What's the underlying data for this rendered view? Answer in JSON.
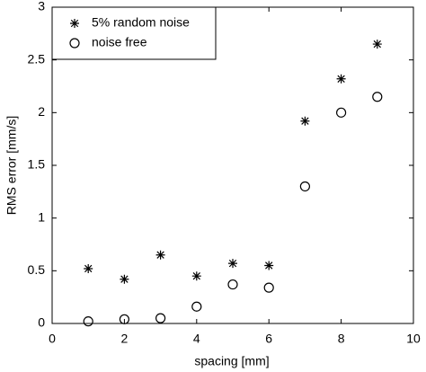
{
  "chart_data": {
    "type": "scatter",
    "xlabel": "spacing [mm]",
    "ylabel": "RMS error [mm/s]",
    "x": [
      1,
      2,
      3,
      4,
      5,
      6,
      7,
      8,
      9
    ],
    "series": [
      {
        "name": "5% random noise",
        "color": "#000000",
        "marker": "star",
        "values": [
          0.52,
          0.42,
          0.65,
          0.45,
          0.57,
          0.55,
          1.92,
          2.32,
          2.65
        ]
      },
      {
        "name": "noise free",
        "color": "#000000",
        "marker": "circle",
        "values": [
          0.02,
          0.04,
          0.05,
          0.16,
          0.37,
          0.34,
          1.3,
          2.0,
          2.15
        ]
      }
    ],
    "xlim": [
      0,
      10
    ],
    "xticks": [
      0,
      2,
      4,
      6,
      8,
      10
    ],
    "ylim": [
      0,
      3
    ],
    "yticks": [
      0,
      0.5,
      1,
      1.5,
      2,
      2.5,
      3
    ],
    "grid": false,
    "legend": "upper-left"
  }
}
